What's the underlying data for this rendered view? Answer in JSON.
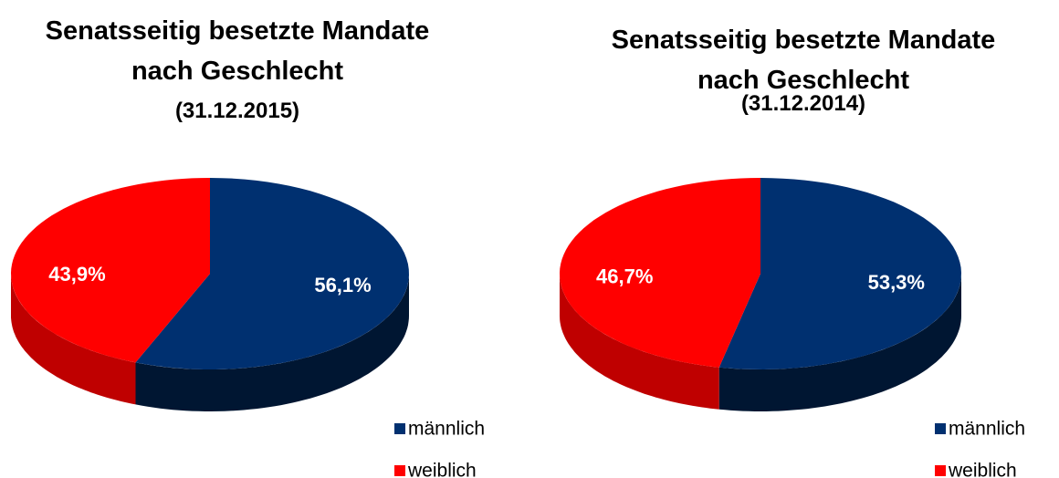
{
  "chart_data": [
    {
      "type": "pie",
      "title": "Senatsseitig besetzte Mandate nach Geschlecht",
      "subtitle": "(31.12.2015)",
      "categories": [
        "männlich",
        "weiblich"
      ],
      "values": [
        56.1,
        43.9
      ],
      "value_labels": [
        "56,1%",
        "43,9%"
      ],
      "colors": [
        "#003070",
        "#ff0000"
      ],
      "legend": "bottom-right"
    },
    {
      "type": "pie",
      "title": "Senatsseitig besetzte Mandate nach Geschlecht",
      "subtitle": "(31.12.2014)",
      "categories": [
        "männlich",
        "weiblich"
      ],
      "values": [
        53.3,
        46.7
      ],
      "value_labels": [
        "53,3%",
        "46,7%"
      ],
      "colors": [
        "#003070",
        "#ff0000"
      ],
      "legend": "bottom-right"
    }
  ]
}
